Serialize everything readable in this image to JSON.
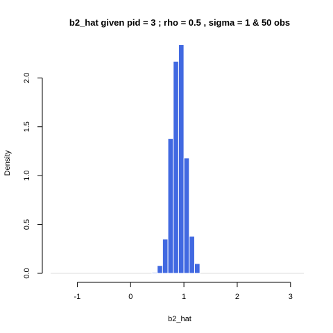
{
  "chart_data": {
    "type": "bar",
    "title": "b2_hat given pid =  3 ; rho = 0.5 , sigma = 1 & 50 obs",
    "xlabel": "b2_hat",
    "ylabel": "Density",
    "xlim": [
      -1.5,
      3.25
    ],
    "ylim": [
      0,
      2.35
    ],
    "x_ticks": [
      -1,
      0,
      1,
      2,
      3
    ],
    "y_ticks": [
      0.0,
      0.5,
      1.0,
      1.5,
      2.0
    ],
    "x_tick_labels": [
      "-1",
      "0",
      "1",
      "2",
      "3"
    ],
    "y_tick_labels": [
      "0.0",
      "0.5",
      "1.0",
      "1.5",
      "2.0"
    ],
    "bar_color": "#4169e1",
    "bar_border_color": "#ffffff",
    "baseline_color": "#dcdcdc",
    "bins": [
      {
        "x0": 0.4,
        "x1": 0.5,
        "density": 0.01
      },
      {
        "x0": 0.5,
        "x1": 0.6,
        "density": 0.08
      },
      {
        "x0": 0.6,
        "x1": 0.7,
        "density": 0.35
      },
      {
        "x0": 0.7,
        "x1": 0.8,
        "density": 1.38
      },
      {
        "x0": 0.8,
        "x1": 0.9,
        "density": 2.17
      },
      {
        "x0": 0.9,
        "x1": 1.0,
        "density": 2.34
      },
      {
        "x0": 1.0,
        "x1": 1.1,
        "density": 1.18
      },
      {
        "x0": 1.1,
        "x1": 1.2,
        "density": 0.38
      },
      {
        "x0": 1.2,
        "x1": 1.3,
        "density": 0.1
      }
    ]
  }
}
